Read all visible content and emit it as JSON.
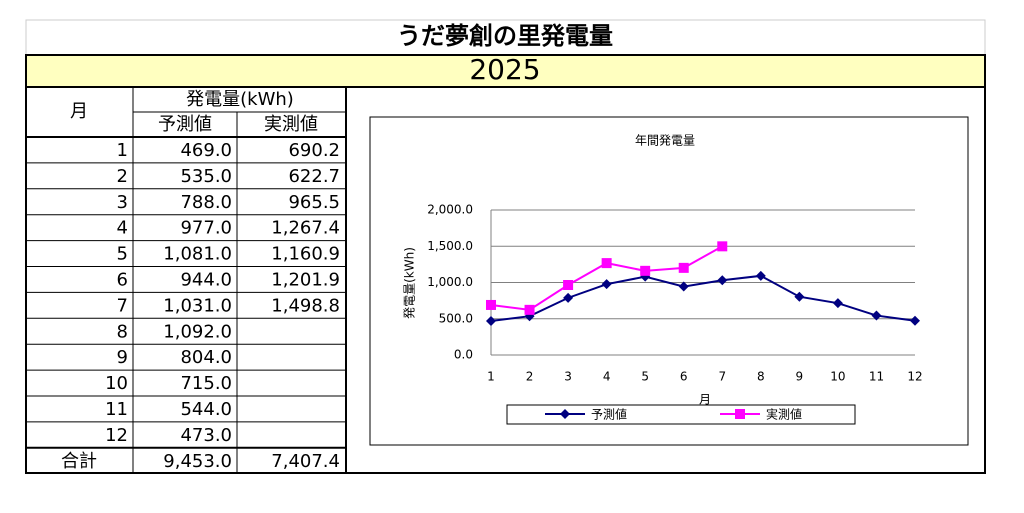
{
  "title": "うだ夢創の里発電量",
  "year": "2025",
  "table": {
    "header": {
      "month": "月",
      "generation": "発電量(kWh)",
      "forecast": "予測値",
      "actual": "実測値"
    },
    "rows": [
      [
        "1",
        "469.0",
        "690.2"
      ],
      [
        "2",
        "535.0",
        "622.7"
      ],
      [
        "3",
        "788.0",
        "965.5"
      ],
      [
        "4",
        "977.0",
        "1,267.4"
      ],
      [
        "5",
        "1,081.0",
        "1,160.9"
      ],
      [
        "6",
        "944.0",
        "1,201.9"
      ],
      [
        "7",
        "1,031.0",
        "1,498.8"
      ],
      [
        "8",
        "1,092.0"
      ],
      [
        "9",
        "804.0"
      ],
      [
        "10",
        "715.0"
      ],
      [
        "11",
        "544.0"
      ],
      [
        "12",
        "473.0"
      ]
    ],
    "total": [
      "合計",
      "9,453.0",
      "7,407.4"
    ]
  },
  "chart_data": {
    "type": "line",
    "title": "年間発電量",
    "x_label": "月",
    "y_label": "発電量(kWh)",
    "categories": [
      "1",
      "2",
      "3",
      "4",
      "5",
      "6",
      "7",
      "8",
      "9",
      "10",
      "11",
      "12"
    ],
    "series": [
      {
        "name": "予測値",
        "color": "#000080",
        "marker": "diamond",
        "values": [
          469.0,
          535.0,
          788.0,
          977.0,
          1081.0,
          944.0,
          1031.0,
          1092.0,
          804.0,
          715.0,
          544.0,
          473.0
        ]
      },
      {
        "name": "実測値",
        "color": "#ff00ff",
        "marker": "square",
        "values": [
          690.2,
          622.7,
          965.5,
          1267.4,
          1160.9,
          1201.9,
          1498.8,
          null,
          null,
          null,
          null,
          null
        ]
      }
    ],
    "ylim": [
      0,
      2000
    ],
    "yticks": [
      {
        "value": 0,
        "label": "0.0"
      },
      {
        "value": 500,
        "label": "500.0"
      },
      {
        "value": 1000,
        "label": "1,000.0"
      },
      {
        "value": 1500,
        "label": "1,500.0"
      },
      {
        "value": 2000,
        "label": "2,000.0"
      }
    ],
    "grid": true,
    "legend": "bottom"
  }
}
